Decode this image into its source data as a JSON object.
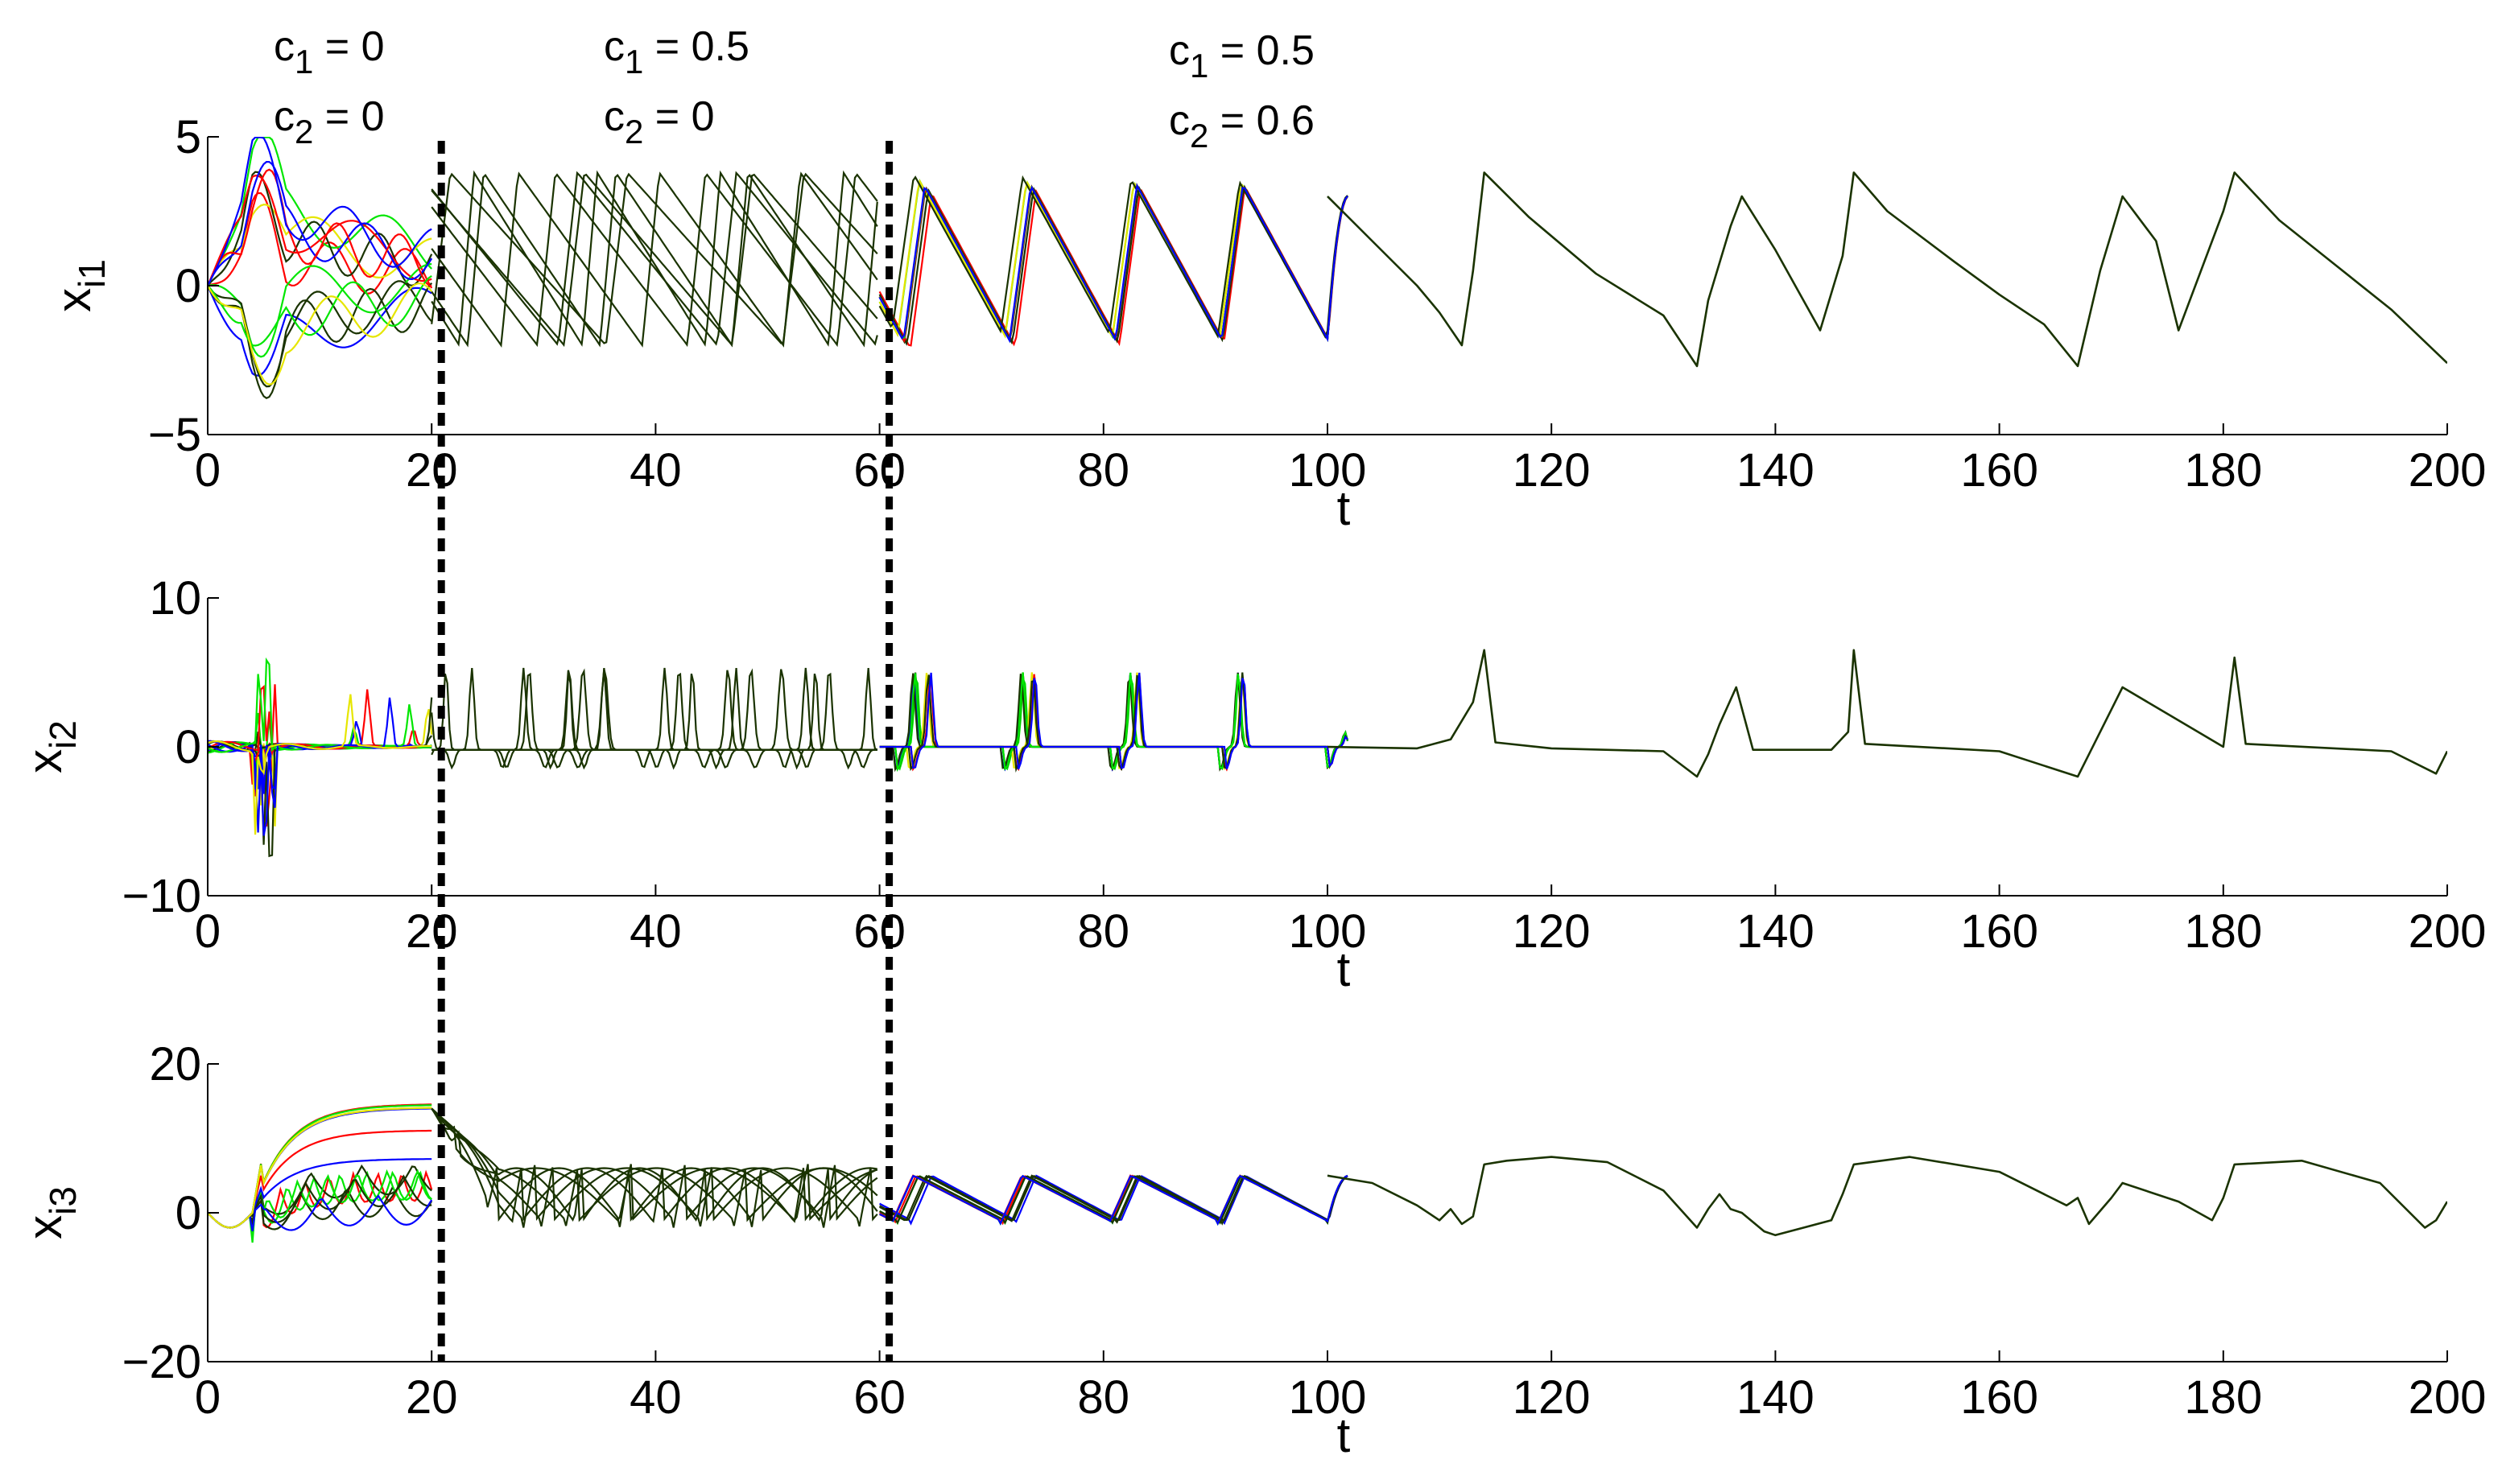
{
  "chart_data": [
    {
      "type": "line",
      "ylabel": "x",
      "ylabel_sub": "i1",
      "xlabel": "t",
      "xlim": [
        0,
        200
      ],
      "ylim": [
        -5,
        5
      ],
      "xticks": [
        0,
        20,
        40,
        60,
        80,
        100,
        120,
        140,
        160,
        180,
        200
      ],
      "yticks": [
        -5,
        0,
        5
      ],
      "grid": false,
      "phase_markers": [
        20,
        60
      ],
      "synchronized_trace": {
        "t": [
          100,
          104,
          108,
          110,
          112,
          113,
          114,
          118,
          124,
          130,
          133,
          134,
          136,
          137,
          140,
          144,
          146,
          147,
          150,
          156,
          160,
          164,
          167,
          169,
          171,
          174,
          176,
          180,
          181,
          185,
          190,
          195,
          200
        ],
        "x": [
          3.0,
          1.5,
          0.0,
          -0.9,
          -2.0,
          0.5,
          3.8,
          2.3,
          0.4,
          -1.0,
          -2.7,
          -0.5,
          2.0,
          3.0,
          1.2,
          -1.5,
          1.0,
          3.8,
          2.5,
          0.8,
          -0.3,
          -1.3,
          -2.7,
          0.5,
          3.0,
          1.5,
          -1.5,
          2.5,
          3.8,
          2.2,
          0.7,
          -0.8,
          -2.6
        ]
      }
    },
    {
      "type": "line",
      "ylabel": "x",
      "ylabel_sub": "i2",
      "xlabel": "t",
      "xlim": [
        0,
        200
      ],
      "ylim": [
        -10,
        10
      ],
      "xticks": [
        0,
        20,
        40,
        60,
        80,
        100,
        120,
        140,
        160,
        180,
        200
      ],
      "yticks": [
        -10,
        0,
        10
      ],
      "grid": false,
      "phase_markers": [
        20,
        60
      ],
      "synchronized_trace": {
        "t": [
          100,
          108,
          111,
          113,
          114,
          115,
          120,
          130,
          133,
          134,
          135,
          136.5,
          138,
          145,
          146.5,
          147,
          148,
          160,
          167,
          168,
          170,
          171,
          180,
          181,
          182,
          195,
          199,
          200
        ],
        "x": [
          0,
          -0.1,
          0.5,
          3.0,
          6.5,
          0.3,
          -0.1,
          -0.3,
          -2.0,
          -0.5,
          1.5,
          4.0,
          -0.2,
          -0.2,
          1.0,
          6.5,
          0.2,
          -0.3,
          -2.0,
          -0.5,
          2.5,
          4.0,
          0.0,
          6.0,
          0.2,
          -0.3,
          -1.8,
          -0.3
        ]
      }
    },
    {
      "type": "line",
      "ylabel": "x",
      "ylabel_sub": "i3",
      "xlabel": "t",
      "xlim": [
        0,
        200
      ],
      "ylim": [
        -20,
        20
      ],
      "xticks": [
        0,
        20,
        40,
        60,
        80,
        100,
        120,
        140,
        160,
        180,
        200
      ],
      "yticks": [
        -20,
        0,
        20
      ],
      "grid": false,
      "phase_markers": [
        20,
        60
      ],
      "synchronized_trace": {
        "t": [
          100,
          104,
          108,
          110,
          111,
          112,
          113,
          114,
          116,
          120,
          125,
          130,
          133,
          134,
          135,
          136,
          137,
          139,
          140,
          145,
          146,
          147,
          152,
          160,
          166,
          167,
          168,
          170,
          171,
          176,
          179,
          180,
          181,
          187,
          194,
          198,
          199,
          200
        ],
        "x": [
          5.0,
          4.0,
          1.0,
          -1.0,
          0.5,
          -1.5,
          -0.5,
          6.5,
          7.0,
          7.5,
          6.8,
          3.0,
          -2.0,
          0.5,
          2.5,
          0.5,
          0.0,
          -2.5,
          -3.0,
          -1.0,
          2.5,
          6.5,
          7.5,
          5.5,
          1.0,
          2.0,
          -1.5,
          2.0,
          4.0,
          1.5,
          -1.0,
          2.0,
          6.5,
          7.0,
          4.0,
          -2.0,
          -1.0,
          1.5
        ]
      }
    }
  ],
  "annotations": [
    {
      "c1": "c",
      "c1_sub": "1",
      "c1_val": " = 0",
      "c2": "c",
      "c2_sub": "2",
      "c2_val": " = 0"
    },
    {
      "c1": "c",
      "c1_sub": "1",
      "c1_val": " = 0.5",
      "c2": "c",
      "c2_sub": "2",
      "c2_val": " = 0"
    },
    {
      "c1": "c",
      "c1_sub": "1",
      "c1_val": " = 0.5",
      "c2": "c",
      "c2_sub": "2",
      "c2_val": " = 0.6"
    }
  ],
  "colors": {
    "sync": "#1a3300",
    "dark": "#1a3300",
    "red": "#ff0000",
    "green": "#00e600",
    "blue": "#0000ff",
    "yellow": "#e6e600",
    "marker": "#000000"
  }
}
